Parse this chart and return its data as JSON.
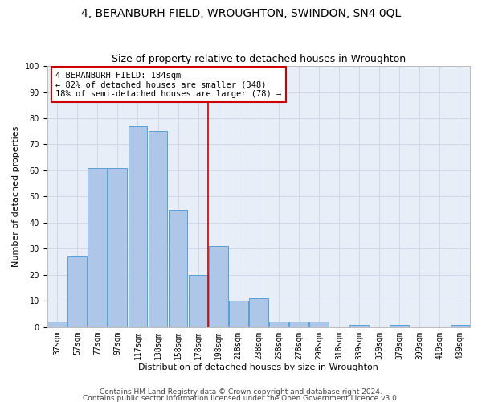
{
  "title": "4, BERANBURH FIELD, WROUGHTON, SWINDON, SN4 0QL",
  "subtitle": "Size of property relative to detached houses in Wroughton",
  "xlabel": "Distribution of detached houses by size in Wroughton",
  "ylabel": "Number of detached properties",
  "bin_labels": [
    "37sqm",
    "57sqm",
    "77sqm",
    "97sqm",
    "117sqm",
    "138sqm",
    "158sqm",
    "178sqm",
    "198sqm",
    "218sqm",
    "238sqm",
    "258sqm",
    "278sqm",
    "298sqm",
    "318sqm",
    "339sqm",
    "359sqm",
    "379sqm",
    "399sqm",
    "419sqm",
    "439sqm"
  ],
  "bar_values": [
    2,
    27,
    61,
    61,
    77,
    75,
    45,
    20,
    31,
    10,
    11,
    2,
    2,
    2,
    0,
    1,
    0,
    1,
    0,
    0,
    1
  ],
  "bar_color": "#aec6e8",
  "bar_edge_color": "#5a9fd4",
  "vline_bin_index": 7,
  "vline_color": "#cc0000",
  "annotation_text": "4 BERANBURH FIELD: 184sqm\n← 82% of detached houses are smaller (348)\n18% of semi-detached houses are larger (78) →",
  "annotation_box_color": "#ffffff",
  "annotation_box_edge_color": "#cc0000",
  "ylim": [
    0,
    100
  ],
  "yticks": [
    0,
    10,
    20,
    30,
    40,
    50,
    60,
    70,
    80,
    90,
    100
  ],
  "grid_color": "#d0d8e8",
  "background_color": "#e8eef8",
  "footer_line1": "Contains HM Land Registry data © Crown copyright and database right 2024.",
  "footer_line2": "Contains public sector information licensed under the Open Government Licence v3.0.",
  "title_fontsize": 10,
  "subtitle_fontsize": 9,
  "axis_label_fontsize": 8,
  "tick_fontsize": 7,
  "annotation_fontsize": 7.5,
  "footer_fontsize": 6.5
}
